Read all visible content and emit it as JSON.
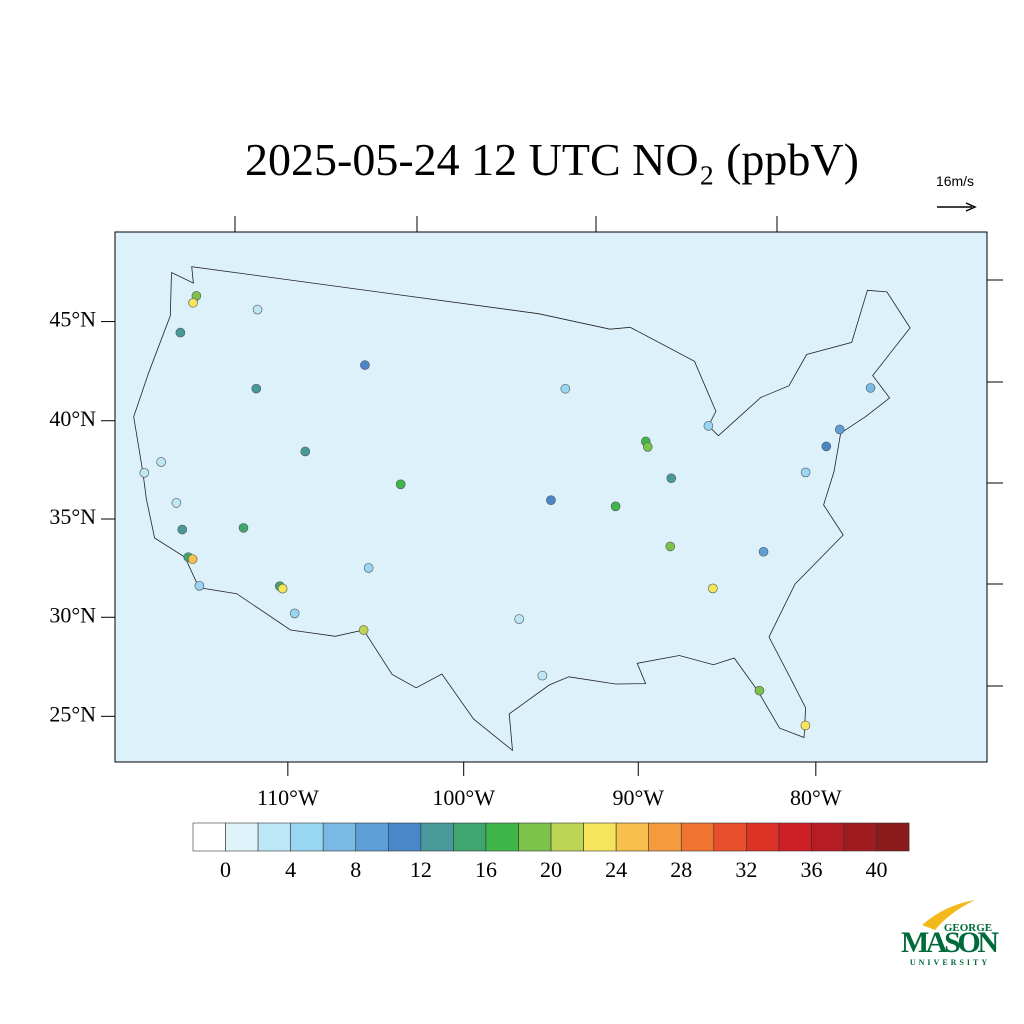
{
  "chart_data": {
    "type": "map",
    "title": "2025-05-24 12 UTC NO₂ (ppbV)",
    "vector_reference": "16m/s",
    "xticks": [
      {
        "value": -110,
        "label": "110°W"
      },
      {
        "value": -100,
        "label": "100°W"
      },
      {
        "value": -90,
        "label": "90°W"
      },
      {
        "value": -80,
        "label": "80°W"
      }
    ],
    "yticks": [
      {
        "value": 45,
        "label": "45°N"
      },
      {
        "value": 40,
        "label": "40°N"
      },
      {
        "value": 35,
        "label": "35°N"
      },
      {
        "value": 30,
        "label": "30°N"
      },
      {
        "value": 25,
        "label": "25°N"
      }
    ],
    "levels": [
      0,
      2,
      4,
      6,
      8,
      10,
      12,
      14,
      16,
      18,
      20,
      22,
      24,
      26,
      28,
      30,
      32,
      34,
      36,
      38,
      40
    ],
    "colorbar_ticks": [
      0,
      4,
      8,
      12,
      16,
      20,
      24,
      28,
      32,
      36,
      40
    ],
    "colors": [
      "#ffffff",
      "#dff3fb",
      "#bde6f6",
      "#99d6f2",
      "#79b9e3",
      "#5e9ed6",
      "#4a87c8",
      "#47999a",
      "#3fa670",
      "#3fb64a",
      "#7cc34b",
      "#bed454",
      "#f5e55a",
      "#f7bf4c",
      "#f59a3d",
      "#f0732f",
      "#e8502c",
      "#dd3327",
      "#cf1f26",
      "#b51c24",
      "#9e1b20",
      "#8a1a1c"
    ],
    "stations": {
      "lon": [
        -122.3,
        -122.4,
        -122.7,
        -117.4,
        -116.2,
        -122.4,
        -121.5,
        -119.8,
        -119.0,
        -118.2,
        -117.9,
        -117.1,
        -115.1,
        -112.1,
        -111.9,
        -110.9,
        -106.5,
        -111.9,
        -105.0,
        -106.6,
        -96.8,
        -95.4,
        -87.7,
        -87.6,
        -90.2,
        -83.1,
        -74.0,
        -75.2,
        -77.0,
        -84.4,
        -80.2,
        -82.5,
        -80.8,
        -94.6,
        -93.3,
        -71.1,
        -86.8,
        -86.2,
        -108.5
      ],
      "lat": [
        47.6,
        47.2,
        45.5,
        47.7,
        43.6,
        37.8,
        38.6,
        36.7,
        35.4,
        34.05,
        34.0,
        32.7,
        36.2,
        33.5,
        33.4,
        32.2,
        31.8,
        40.8,
        39.7,
        35.1,
        32.8,
        29.8,
        41.9,
        41.6,
        38.6,
        42.3,
        40.7,
        40.0,
        38.9,
        33.7,
        25.8,
        28.0,
        35.2,
        39.1,
        45.0,
        42.4,
        36.2,
        39.8,
        45.8
      ],
      "values": [
        18,
        22,
        12,
        3,
        12,
        3,
        2,
        3,
        13,
        14,
        24,
        5,
        14,
        14,
        22,
        5,
        20,
        13,
        16,
        4,
        3,
        2,
        16,
        18,
        16,
        5,
        8,
        10,
        4,
        22,
        22,
        18,
        8,
        10,
        4,
        6,
        18,
        12,
        10
      ]
    },
    "logo": {
      "top": "GEORGE",
      "main": "MASON",
      "bottom": "UNIVERSITY"
    }
  }
}
